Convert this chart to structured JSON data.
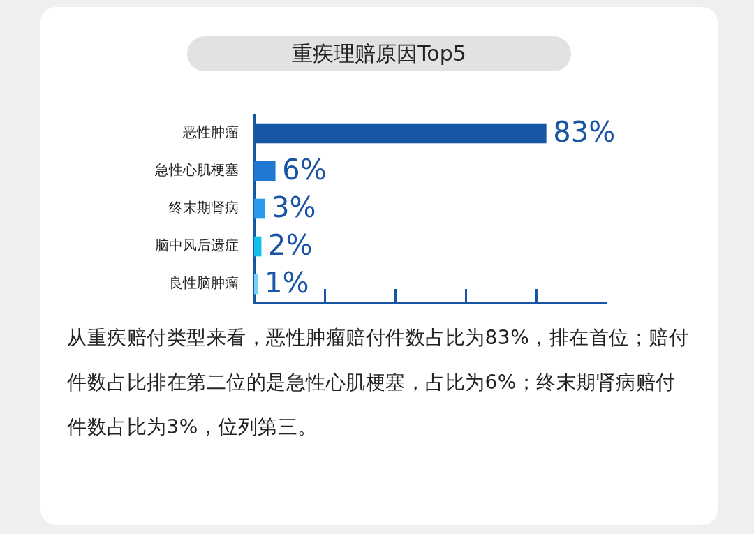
{
  "chart_data": {
    "type": "bar",
    "orientation": "horizontal",
    "title": "重疾理赔原因Top5",
    "categories": [
      "恶性肿瘤",
      "急性心肌梗塞",
      "终末期肾病",
      "脑中风后遗症",
      "良性脑肿瘤"
    ],
    "values": [
      83,
      6,
      3,
      2,
      1
    ],
    "colors": [
      "#1656a4",
      "#1f78d1",
      "#2a9af0",
      "#12c0f0",
      "#6fd3f5"
    ],
    "value_labels": [
      "83%",
      "6%",
      "3%",
      "2%",
      "1%"
    ],
    "xlim": [
      0,
      100
    ],
    "tick_labels": "y",
    "grid": false,
    "legend": false,
    "annotations": [
      "从重疾赔付类型来看，恶性肿瘤赔付件数占比为83%，排在首位；赔付件数占比排在第二位的是急性心肌梗塞，占比为6%；终末期肾病赔付件数占比为3%，位列第三。"
    ]
  }
}
